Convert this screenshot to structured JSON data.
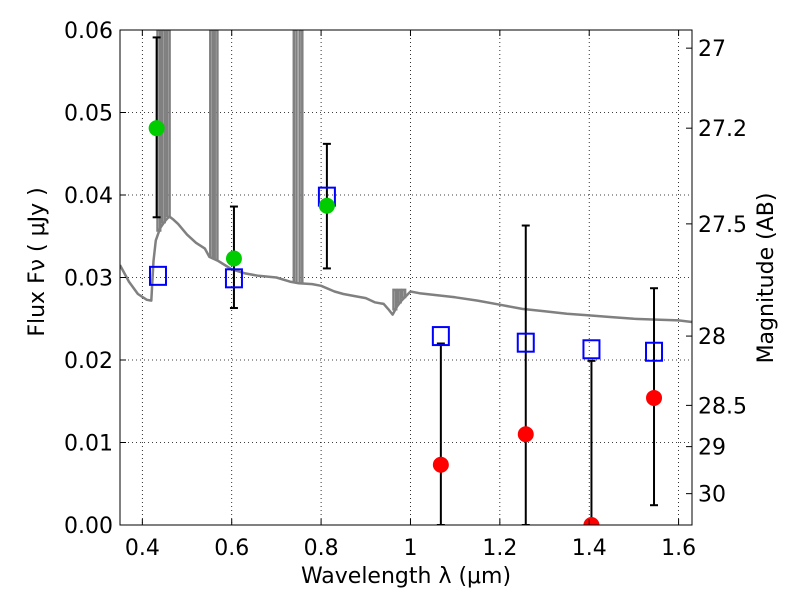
{
  "chart_data": {
    "type": "scatter",
    "xlabel": "Wavelength  λ (μm)",
    "ylabel": "Flux  Fν  ( μJy )",
    "y2label": "Magnitude (AB)",
    "xlim": [
      0.35,
      1.63
    ],
    "ylim": [
      0,
      0.06
    ],
    "x_ticks": [
      0.4,
      0.6,
      0.8,
      1.0,
      1.2,
      1.4,
      1.6
    ],
    "x_tick_labels": [
      "0.4",
      "0.6",
      "0.8",
      "1",
      "1.2",
      "1.4",
      "1.6"
    ],
    "y_ticks": [
      0.0,
      0.01,
      0.02,
      0.03,
      0.04,
      0.05,
      0.06
    ],
    "y_tick_labels": [
      "0.00",
      "0.01",
      "0.02",
      "0.03",
      "0.04",
      "0.05",
      "0.06"
    ],
    "y2_ticks": [
      {
        "label": "27",
        "flux": 0.0578
      },
      {
        "label": "27.2",
        "flux": 0.0481
      },
      {
        "label": "27.5",
        "flux": 0.0365
      },
      {
        "label": "28",
        "flux": 0.0229
      },
      {
        "label": "28.5",
        "flux": 0.0145
      },
      {
        "label": "29",
        "flux": 0.0095
      },
      {
        "label": "30",
        "flux": 0.0038
      }
    ],
    "grid": true,
    "colors": {
      "model": "#808080",
      "detected": "#00cc00",
      "upper_limit": "#ff0000",
      "model_photometry": "#0000ff",
      "error_bar": "#000000"
    },
    "sed_model": {
      "x": [
        0.35,
        0.37,
        0.39,
        0.41,
        0.42,
        0.425,
        0.43,
        0.44,
        0.45,
        0.46,
        0.47,
        0.48,
        0.5,
        0.52,
        0.54,
        0.55,
        0.57,
        0.6,
        0.63,
        0.66,
        0.7,
        0.73,
        0.75,
        0.78,
        0.8,
        0.83,
        0.85,
        0.88,
        0.9,
        0.92,
        0.94,
        0.95,
        0.96,
        0.97,
        0.98,
        1.0,
        1.02,
        1.05,
        1.1,
        1.15,
        1.2,
        1.25,
        1.3,
        1.35,
        1.4,
        1.45,
        1.5,
        1.55,
        1.6,
        1.63
      ],
      "y": [
        0.0315,
        0.0295,
        0.028,
        0.0273,
        0.0272,
        0.032,
        0.0345,
        0.036,
        0.0368,
        0.0374,
        0.037,
        0.0365,
        0.0352,
        0.0342,
        0.0335,
        0.0325,
        0.032,
        0.031,
        0.0305,
        0.0302,
        0.03,
        0.0295,
        0.0293,
        0.0292,
        0.029,
        0.0283,
        0.028,
        0.0277,
        0.0275,
        0.027,
        0.0268,
        0.0262,
        0.0255,
        0.0265,
        0.0272,
        0.0283,
        0.0281,
        0.0279,
        0.0276,
        0.0272,
        0.0267,
        0.0262,
        0.0259,
        0.0256,
        0.0254,
        0.0252,
        0.025,
        0.0249,
        0.0248,
        0.0246
      ]
    },
    "emission_lines": [
      {
        "x": 0.437,
        "peak": 0.06
      },
      {
        "x": 0.447,
        "peak": 0.06
      },
      {
        "x": 0.458,
        "peak": 0.06
      },
      {
        "x": 0.555,
        "peak": 0.06
      },
      {
        "x": 0.565,
        "peak": 0.06
      },
      {
        "x": 0.742,
        "peak": 0.06
      },
      {
        "x": 0.755,
        "peak": 0.06
      },
      {
        "x": 0.965,
        "peak": 0.0285
      },
      {
        "x": 0.975,
        "peak": 0.0285
      },
      {
        "x": 0.985,
        "peak": 0.0285
      }
    ],
    "series": [
      {
        "marker": "filled-circle",
        "x": [
          0.432,
          0.605,
          0.813,
          1.068,
          1.258,
          1.405,
          1.545
        ],
        "y": [
          0.0481,
          0.0323,
          0.0387,
          0.0073,
          0.011,
          0.0,
          0.0154
        ],
        "status": [
          "detected",
          "detected",
          "detected",
          "upper_limit",
          "upper_limit",
          "upper_limit",
          "upper_limit"
        ],
        "err_low": [
          0.0373,
          0.0263,
          0.0311,
          0.0,
          0.0,
          0.0,
          0.0024
        ],
        "err_high": [
          0.0591,
          0.0386,
          0.0462,
          0.022,
          0.0363,
          0.0199,
          0.0287
        ]
      },
      {
        "marker": "open-square",
        "x": [
          0.435,
          0.605,
          0.813,
          1.068,
          1.258,
          1.405,
          1.545
        ],
        "y": [
          0.0302,
          0.0299,
          0.0398,
          0.0229,
          0.0221,
          0.0213,
          0.021
        ]
      }
    ]
  }
}
